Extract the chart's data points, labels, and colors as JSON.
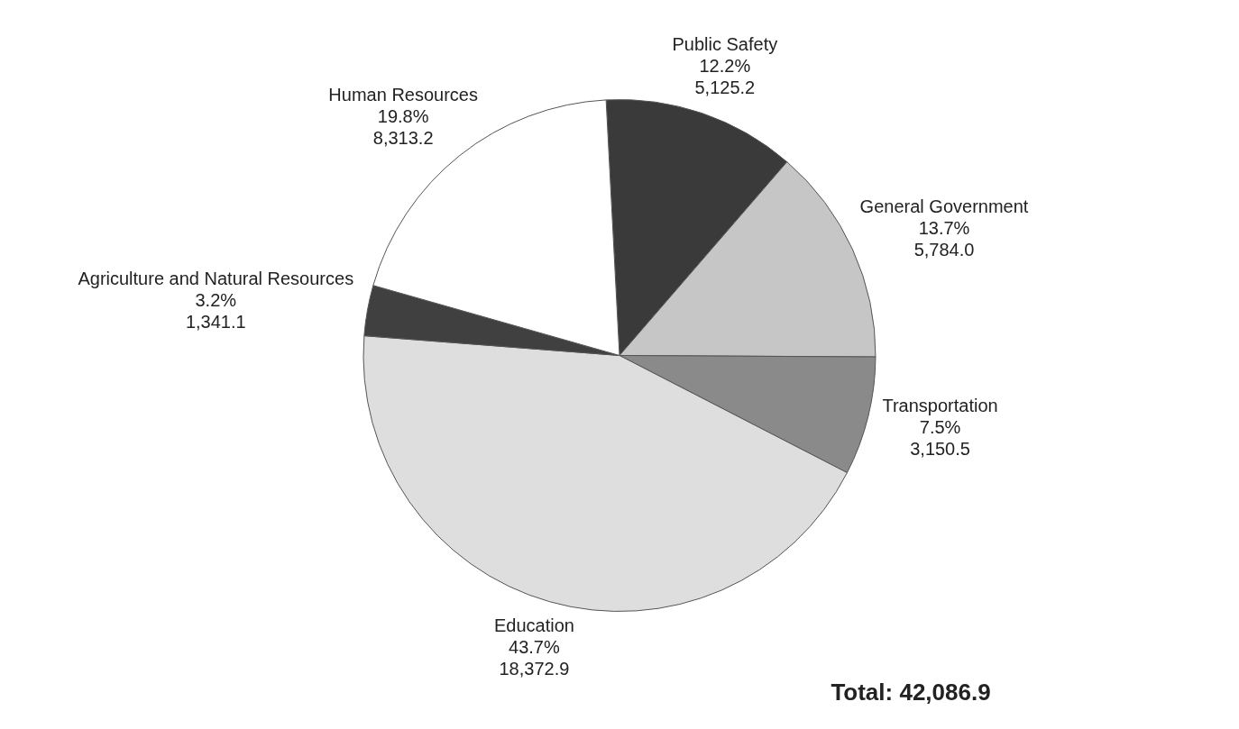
{
  "chart_data": {
    "type": "pie",
    "categories": [
      "Public Safety",
      "General Government",
      "Transportation",
      "Education",
      "Agriculture and Natural Resources",
      "Human Resources"
    ],
    "values": [
      5125.2,
      5784.0,
      3150.5,
      18372.9,
      1341.1,
      8313.2
    ],
    "colors": [
      "#3a3a3a",
      "#c6c6c6",
      "#8a8a8a",
      "#dedede",
      "#404040",
      "#ffffff"
    ],
    "value_labels": [
      "12.2%\n5,125.2",
      "13.7%\n5,784.0",
      "7.5%\n3,150.5",
      "43.7%\n18,372.9",
      "3.2%\n1,341.1",
      "19.8%\n8,313.2"
    ],
    "annotations": [
      "Total: 42,086.9"
    ],
    "legend": false
  }
}
